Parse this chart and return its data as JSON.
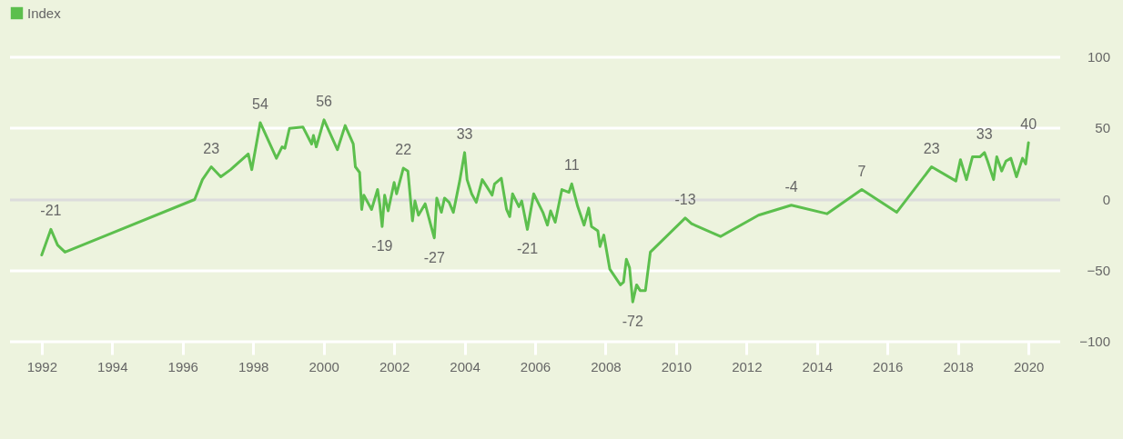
{
  "chart_data": {
    "type": "line",
    "legend": "top left",
    "grid": "y",
    "xlim": [
      1991.1,
      2020.9
    ],
    "xticks": [
      1992,
      1994,
      1996,
      1998,
      2000,
      2002,
      2004,
      2006,
      2008,
      2010,
      2012,
      2014,
      2016,
      2018,
      2020
    ],
    "ylim": [
      -100,
      100
    ],
    "yticks": [
      -100,
      -50,
      0,
      50,
      100
    ],
    "series": [
      {
        "name": "Index",
        "color": "#5cbf4d",
        "x": [
          1992.0,
          1992.26,
          1992.45,
          1992.66,
          1996.34,
          1996.56,
          1996.81,
          1997.08,
          1997.36,
          1997.86,
          1997.96,
          1998.2,
          1998.66,
          1998.82,
          1998.9,
          1999.03,
          1999.41,
          1999.66,
          1999.71,
          1999.79,
          2000.01,
          2000.39,
          2000.61,
          2000.84,
          2000.9,
          2001.02,
          2001.08,
          2001.14,
          2001.36,
          2001.53,
          2001.59,
          2001.66,
          2001.73,
          2001.83,
          2002.0,
          2002.07,
          2002.26,
          2002.39,
          2002.52,
          2002.59,
          2002.69,
          2002.88,
          2003.04,
          2003.14,
          2003.21,
          2003.34,
          2003.43,
          2003.56,
          2003.68,
          2003.86,
          2004.0,
          2004.07,
          2004.2,
          2004.33,
          2004.5,
          2004.63,
          2004.78,
          2004.85,
          2005.04,
          2005.19,
          2005.28,
          2005.36,
          2005.54,
          2005.62,
          2005.78,
          2005.96,
          2006.22,
          2006.35,
          2006.44,
          2006.57,
          2006.76,
          2006.96,
          2007.04,
          2007.21,
          2007.39,
          2007.52,
          2007.6,
          2007.78,
          2007.84,
          2007.95,
          2008.12,
          2008.42,
          2008.51,
          2008.59,
          2008.68,
          2008.77,
          2008.88,
          2008.98,
          2009.13,
          2009.27,
          2010.26,
          2010.44,
          2011.26,
          2012.34,
          2013.27,
          2014.28,
          2015.27,
          2016.26,
          2017.25,
          2017.94,
          2018.07,
          2018.24,
          2018.41,
          2018.62,
          2018.75,
          2018.84,
          2019.01,
          2019.1,
          2019.24,
          2019.36,
          2019.5,
          2019.66,
          2019.83,
          2019.92,
          2020.0
        ],
        "values": [
          -39,
          -21,
          -32,
          -37,
          0,
          14,
          23,
          16,
          21,
          32,
          21,
          54,
          29,
          37,
          36,
          50,
          51,
          39,
          45,
          37,
          56,
          35,
          52,
          39,
          23,
          19,
          -7,
          3,
          -7,
          7,
          -3,
          -19,
          3,
          -8,
          12,
          4,
          22,
          20,
          -15,
          -1,
          -11,
          -3,
          -18,
          -27,
          1,
          -9,
          1,
          -2,
          -9,
          13,
          33,
          14,
          4,
          -2,
          14,
          9,
          3,
          11,
          15,
          -7,
          -12,
          4,
          -5,
          -1,
          -21,
          4,
          -9,
          -18,
          -8,
          -16,
          7,
          5,
          11,
          -5,
          -18,
          -6,
          -19,
          -22,
          -33,
          -25,
          -49,
          -60,
          -58,
          -42,
          -48,
          -72,
          -60,
          -64,
          -64,
          -37,
          -13,
          -17,
          -26,
          -11,
          -4,
          -10,
          7,
          -9,
          23,
          13,
          28,
          14,
          30,
          30,
          33,
          27,
          14,
          30,
          20,
          27,
          29,
          16,
          29,
          25,
          40
        ]
      }
    ],
    "annotations": [
      {
        "text": "-21",
        "x": 1992.26,
        "y": -21
      },
      {
        "text": "23",
        "x": 1996.81,
        "y": 23
      },
      {
        "text": "54",
        "x": 1998.2,
        "y": 54
      },
      {
        "text": "56",
        "x": 2000.01,
        "y": 56
      },
      {
        "text": "-19",
        "x": 2001.66,
        "y": -19
      },
      {
        "text": "22",
        "x": 2002.26,
        "y": 22
      },
      {
        "text": "-27",
        "x": 2003.14,
        "y": -27
      },
      {
        "text": "33",
        "x": 2004.0,
        "y": 33
      },
      {
        "text": "-21",
        "x": 2005.78,
        "y": -21
      },
      {
        "text": "11",
        "x": 2007.04,
        "y": 11
      },
      {
        "text": "-72",
        "x": 2008.77,
        "y": -72
      },
      {
        "text": "-13",
        "x": 2010.26,
        "y": -13
      },
      {
        "text": "-4",
        "x": 2013.27,
        "y": -4
      },
      {
        "text": "7",
        "x": 2015.27,
        "y": 7
      },
      {
        "text": "23",
        "x": 2017.25,
        "y": 23
      },
      {
        "text": "33",
        "x": 2018.75,
        "y": 33
      },
      {
        "text": "40",
        "x": 2020.0,
        "y": 40
      }
    ]
  }
}
